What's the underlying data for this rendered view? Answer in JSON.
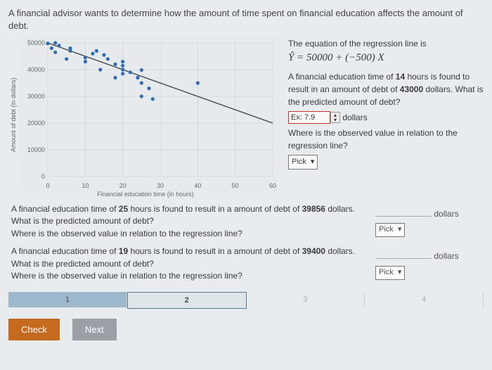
{
  "intro": "A financial advisor wants to determine how the amount of time spent on financial education affects the amount of debt.",
  "chart": {
    "ylim": [
      0,
      50000
    ],
    "yticks": [
      0,
      10000,
      20000,
      30000,
      40000,
      50000
    ],
    "xlim": [
      0,
      60
    ],
    "xticks": [
      0,
      10,
      20,
      30,
      40,
      50,
      60
    ],
    "xlabel": "Financial education time (in hours)",
    "ylabel": "Amount of debt (in dollars)",
    "grid_color": "#c9ced2",
    "point_color": "#2f6db3",
    "line_color": "#4a4a4a",
    "bg_color": "#e6eaed",
    "reg_intercept": 50000,
    "reg_slope": -500,
    "points": [
      [
        0,
        49800
      ],
      [
        1,
        48000
      ],
      [
        2,
        50000
      ],
      [
        2,
        46500
      ],
      [
        3,
        49000
      ],
      [
        5,
        44000
      ],
      [
        6,
        48000
      ],
      [
        6,
        47000
      ],
      [
        10,
        44500
      ],
      [
        10,
        43000
      ],
      [
        12,
        46000
      ],
      [
        13,
        47000
      ],
      [
        14,
        40000
      ],
      [
        15,
        45500
      ],
      [
        16,
        44000
      ],
      [
        18,
        42000
      ],
      [
        18,
        37000
      ],
      [
        20,
        41500
      ],
      [
        20,
        43000
      ],
      [
        20,
        40000
      ],
      [
        20,
        38500
      ],
      [
        22,
        39000
      ],
      [
        24,
        37000
      ],
      [
        25,
        39856
      ],
      [
        25,
        35000
      ],
      [
        25,
        30000
      ],
      [
        27,
        33000
      ],
      [
        28,
        29000
      ],
      [
        40,
        35000
      ]
    ]
  },
  "right": {
    "eq_lead": "The equation of the regression line is",
    "eq": "Ŷ = 50000 + (−500) X",
    "q1a": "A financial education time of ",
    "q1_hours": "14",
    "q1b": " hours is found to result in an amount of debt of ",
    "q1_debt": "43000",
    "q1c": " dollars. What is the predicted amount of debt?",
    "input_placeholder": "Ex: 7.9",
    "unit": "dollars",
    "q2": "Where is the observed value in relation to the regression line?",
    "pick": "Pick"
  },
  "below": {
    "b1a": "A financial education time of ",
    "b1_hours": "25",
    "b1b": " hours is found to result in a amount of debt of ",
    "b1_debt": "39856",
    "b1c": " dollars. What is the predicted amount of debt?",
    "b1q": "Where is the observed value in relation to the regression line?",
    "b2a": "A financial education time of ",
    "b2_hours": "19",
    "b2b": " hours is found to result in a amount of debt of ",
    "b2_debt": "39400",
    "b2c": " dollars. What is the predicted amount of debt?",
    "b2q": "Where is the observed value in relation to the regression line?",
    "dollars": "dollars",
    "pick": "Pick"
  },
  "progress": {
    "seg1": "1",
    "seg2": "2",
    "seg3": "3",
    "seg4": "4"
  },
  "buttons": {
    "check": "Check",
    "next": "Next"
  }
}
